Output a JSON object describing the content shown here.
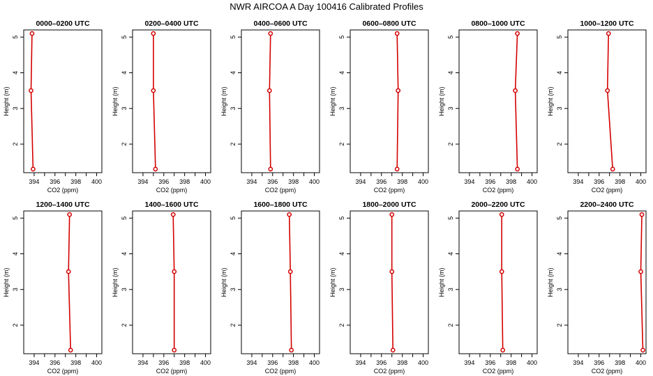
{
  "title": "NWR AIRCOA A  Day 100416  Calibrated Profiles",
  "chart_data": [
    {
      "type": "line",
      "title": "0000–0200 UTC",
      "xlabel": "CO2 (ppm)",
      "ylabel": "Height (m)",
      "xlim": [
        393,
        400.5
      ],
      "ylim": [
        1.2,
        5.2
      ],
      "xticks": [
        394,
        396,
        398,
        400
      ],
      "yticks": [
        2,
        3,
        4,
        5
      ],
      "x": [
        393.9,
        393.7,
        393.8
      ],
      "y": [
        1.3,
        3.5,
        5.1
      ]
    },
    {
      "type": "line",
      "title": "0200–0400 UTC",
      "xlabel": "CO2 (ppm)",
      "ylabel": "Height (m)",
      "xlim": [
        393,
        400.5
      ],
      "ylim": [
        1.2,
        5.2
      ],
      "xticks": [
        394,
        396,
        398,
        400
      ],
      "yticks": [
        2,
        3,
        4,
        5
      ],
      "x": [
        395.2,
        395.0,
        395.0
      ],
      "y": [
        1.3,
        3.5,
        5.1
      ]
    },
    {
      "type": "line",
      "title": "0400–0600 UTC",
      "xlabel": "CO2 (ppm)",
      "ylabel": "Height (m)",
      "xlim": [
        393,
        400.5
      ],
      "ylim": [
        1.2,
        5.2
      ],
      "xticks": [
        394,
        396,
        398,
        400
      ],
      "yticks": [
        2,
        3,
        4,
        5
      ],
      "x": [
        395.8,
        395.7,
        395.8
      ],
      "y": [
        1.3,
        3.5,
        5.1
      ]
    },
    {
      "type": "line",
      "title": "0600–0800 UTC",
      "xlabel": "CO2 (ppm)",
      "ylabel": "Height (m)",
      "xlim": [
        393,
        400.5
      ],
      "ylim": [
        1.2,
        5.2
      ],
      "xticks": [
        394,
        396,
        398,
        400
      ],
      "yticks": [
        2,
        3,
        4,
        5
      ],
      "x": [
        397.5,
        397.6,
        397.5
      ],
      "y": [
        1.3,
        3.5,
        5.1
      ]
    },
    {
      "type": "line",
      "title": "0800–1000 UTC",
      "xlabel": "CO2 (ppm)",
      "ylabel": "Height (m)",
      "xlim": [
        393,
        400.5
      ],
      "ylim": [
        1.2,
        5.2
      ],
      "xticks": [
        394,
        396,
        398,
        400
      ],
      "yticks": [
        2,
        3,
        4,
        5
      ],
      "x": [
        398.6,
        398.4,
        398.6
      ],
      "y": [
        1.3,
        3.5,
        5.1
      ]
    },
    {
      "type": "line",
      "title": "1000–1200 UTC",
      "xlabel": "CO2 (ppm)",
      "ylabel": "Height (m)",
      "xlim": [
        393,
        400.5
      ],
      "ylim": [
        1.2,
        5.2
      ],
      "xticks": [
        394,
        396,
        398,
        400
      ],
      "yticks": [
        2,
        3,
        4,
        5
      ],
      "x": [
        397.3,
        396.8,
        396.9
      ],
      "y": [
        1.3,
        3.5,
        5.1
      ]
    },
    {
      "type": "line",
      "title": "1200–1400 UTC",
      "xlabel": "CO2 (ppm)",
      "ylabel": "Height (m)",
      "xlim": [
        393,
        400.5
      ],
      "ylim": [
        1.2,
        5.2
      ],
      "xticks": [
        394,
        396,
        398,
        400
      ],
      "yticks": [
        2,
        3,
        4,
        5
      ],
      "x": [
        397.5,
        397.3,
        397.4
      ],
      "y": [
        1.3,
        3.5,
        5.1
      ]
    },
    {
      "type": "line",
      "title": "1400–1600 UTC",
      "xlabel": "CO2 (ppm)",
      "ylabel": "Height (m)",
      "xlim": [
        393,
        400.5
      ],
      "ylim": [
        1.2,
        5.2
      ],
      "xticks": [
        394,
        396,
        398,
        400
      ],
      "yticks": [
        2,
        3,
        4,
        5
      ],
      "x": [
        397.0,
        397.0,
        396.9
      ],
      "y": [
        1.3,
        3.5,
        5.1
      ]
    },
    {
      "type": "line",
      "title": "1600–1800 UTC",
      "xlabel": "CO2 (ppm)",
      "ylabel": "Height (m)",
      "xlim": [
        393,
        400.5
      ],
      "ylim": [
        1.2,
        5.2
      ],
      "xticks": [
        394,
        396,
        398,
        400
      ],
      "yticks": [
        2,
        3,
        4,
        5
      ],
      "x": [
        397.8,
        397.7,
        397.6
      ],
      "y": [
        1.3,
        3.5,
        5.1
      ]
    },
    {
      "type": "line",
      "title": "1800–2000 UTC",
      "xlabel": "CO2 (ppm)",
      "ylabel": "Height (m)",
      "xlim": [
        393,
        400.5
      ],
      "ylim": [
        1.2,
        5.2
      ],
      "xticks": [
        394,
        396,
        398,
        400
      ],
      "yticks": [
        2,
        3,
        4,
        5
      ],
      "x": [
        397.1,
        397.0,
        397.0
      ],
      "y": [
        1.3,
        3.5,
        5.1
      ]
    },
    {
      "type": "line",
      "title": "2000–2200 UTC",
      "xlabel": "CO2 (ppm)",
      "ylabel": "Height (m)",
      "xlim": [
        393,
        400.5
      ],
      "ylim": [
        1.2,
        5.2
      ],
      "xticks": [
        394,
        396,
        398,
        400
      ],
      "yticks": [
        2,
        3,
        4,
        5
      ],
      "x": [
        397.2,
        397.1,
        397.1
      ],
      "y": [
        1.3,
        3.5,
        5.1
      ]
    },
    {
      "type": "line",
      "title": "2200–2400 UTC",
      "xlabel": "CO2 (ppm)",
      "ylabel": "Height (m)",
      "xlim": [
        393,
        400.5
      ],
      "ylim": [
        1.2,
        5.2
      ],
      "xticks": [
        394,
        396,
        398,
        400
      ],
      "yticks": [
        2,
        3,
        4,
        5
      ],
      "x": [
        400.2,
        400.0,
        400.1
      ],
      "y": [
        1.3,
        3.5,
        5.1
      ]
    }
  ],
  "colors": {
    "series": "#d40000",
    "axis": "#000000"
  }
}
